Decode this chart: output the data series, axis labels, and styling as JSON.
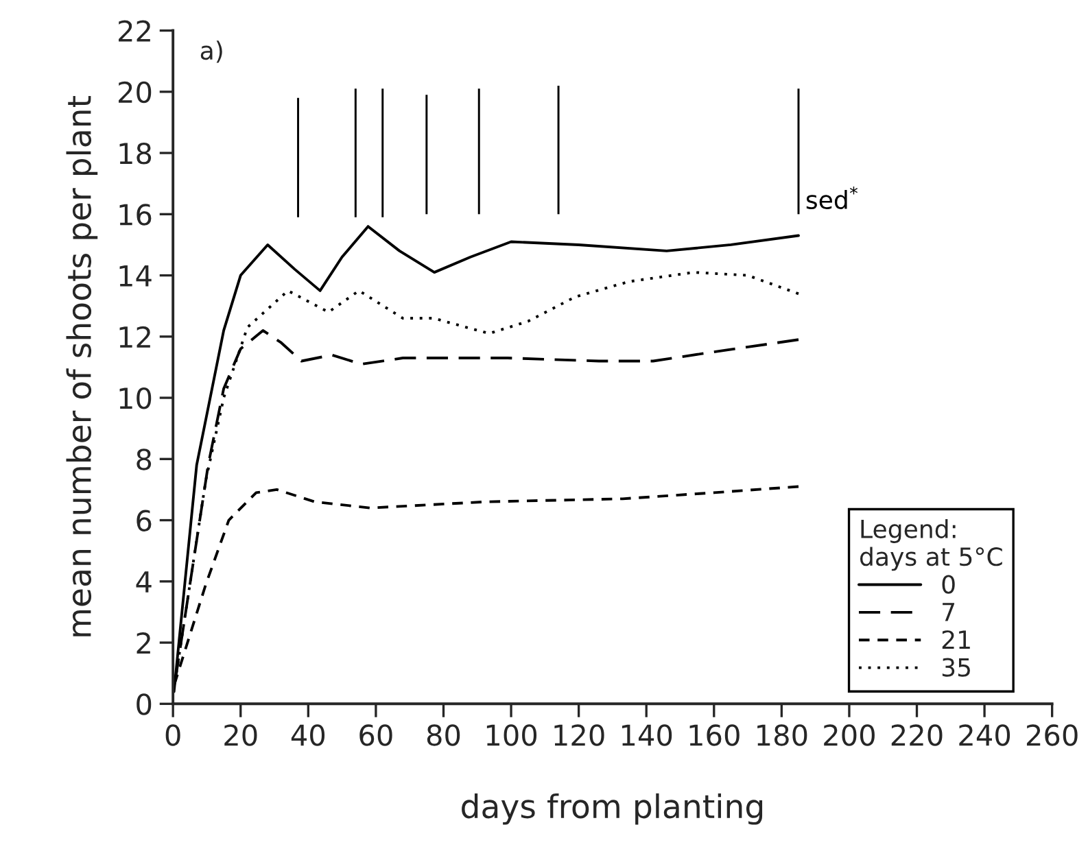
{
  "chart_data": {
    "type": "line",
    "xlabel": "days from planting",
    "ylabel": "mean number of shoots per plant",
    "legend_title": "Legend:\ndays at 5°C",
    "legend": "bottom right",
    "annotations": [
      "a)"
    ],
    "xlim": [
      0,
      260
    ],
    "xticks": [
      0,
      20,
      40,
      60,
      80,
      100,
      120,
      140,
      160,
      180,
      200,
      220,
      240,
      260
    ],
    "ylim": [
      0,
      22
    ],
    "yticks": [
      0,
      2,
      4,
      6,
      8,
      10,
      12,
      14,
      16,
      18,
      20,
      22
    ],
    "grid": false,
    "marker": "none",
    "series": [
      {
        "name": "0",
        "color": "#000000",
        "line_style": "solid",
        "x": [
          0.3,
          7,
          11,
          15,
          20,
          28,
          36,
          43.5,
          50,
          57.7,
          67,
          77.3,
          88,
          100,
          120,
          146,
          165,
          185
        ],
        "values": [
          0.4,
          7.8,
          10.0,
          12.2,
          14.0,
          15.0,
          14.2,
          13.5,
          14.6,
          15.6,
          14.8,
          14.1,
          14.6,
          15.1,
          15.0,
          14.8,
          15.0,
          15.3
        ]
      },
      {
        "name": "7",
        "color": "#000000",
        "line_style": "dashed",
        "x": [
          0.3,
          10.4,
          15,
          20,
          26.6,
          32,
          38,
          47,
          55.7,
          68,
          99,
          126,
          142,
          160,
          185
        ],
        "values": [
          0.5,
          7.8,
          10.3,
          11.6,
          12.2,
          11.8,
          11.2,
          11.4,
          11.1,
          11.3,
          11.3,
          11.2,
          11.2,
          11.5,
          11.9
        ]
      },
      {
        "name": "21",
        "color": "#000000",
        "line_style": "dashed",
        "x": [
          0.3,
          9.7,
          16.5,
          24.6,
          30.7,
          42,
          58.4,
          92,
          133,
          160,
          185
        ],
        "values": [
          0.6,
          3.9,
          6.0,
          6.9,
          7.0,
          6.6,
          6.4,
          6.6,
          6.7,
          6.9,
          7.1
        ]
      },
      {
        "name": "35",
        "color": "#000000",
        "line_style": "dotted",
        "x": [
          0.3,
          9.7,
          15,
          22,
          34,
          46,
          55,
          68,
          77,
          93.5,
          105,
          119,
          135,
          154,
          170,
          185
        ],
        "values": [
          0.5,
          7.3,
          10.0,
          12.3,
          13.5,
          12.8,
          13.5,
          12.6,
          12.6,
          12.1,
          12.5,
          13.3,
          13.8,
          14.1,
          14.0,
          13.4
        ]
      },
      {
        "name": "sed$^{*}$",
        "type": "bar",
        "color": "#000000",
        "x": [
          37,
          54,
          62,
          75,
          90.5,
          114,
          185
        ],
        "base": [
          15.9,
          15.9,
          15.9,
          16.0,
          16.0,
          16.0,
          16.0
        ],
        "values": [
          3.9,
          4.2,
          4.2,
          3.9,
          4.1,
          4.2,
          4.1
        ]
      }
    ]
  }
}
